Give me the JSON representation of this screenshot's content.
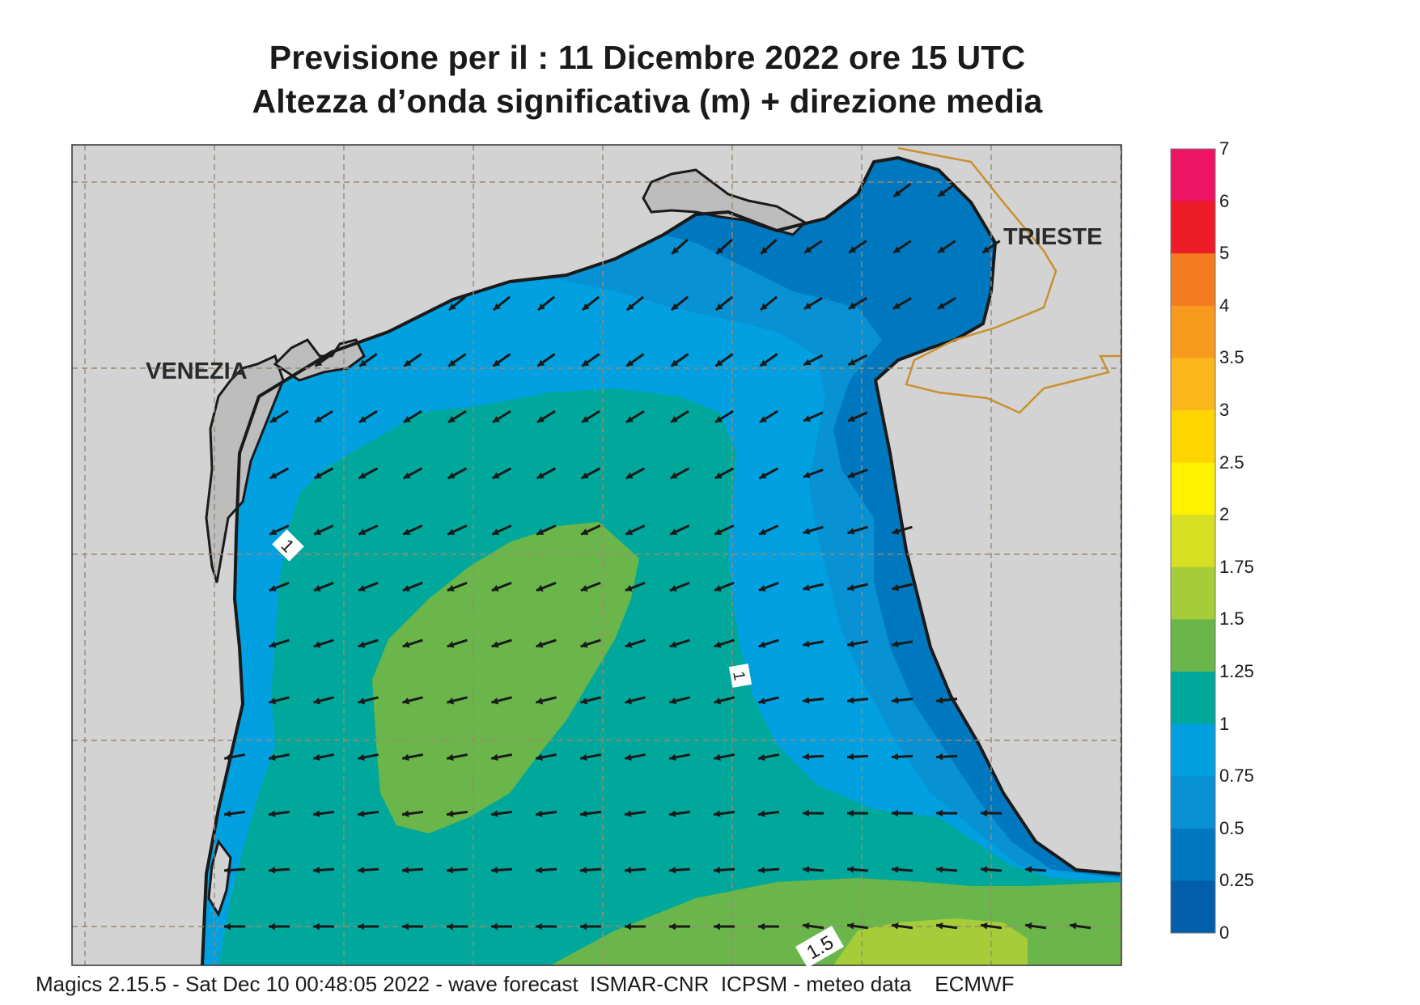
{
  "header": {
    "title_line1": "Previsione per il  :  11 Dicembre  2022   ore 15 UTC",
    "title_line2": "Altezza d’onda significativa (m) + direzione media"
  },
  "map": {
    "cities": [
      "VENEZIA",
      "TRIESTE"
    ],
    "contour_labels": [
      "1",
      "1",
      "1.5"
    ],
    "wave_direction": "from NE toward SW / W",
    "colors": {
      "land": "#d3d3d3",
      "coast": "#1a1a1a",
      "border": "#c9912e",
      "grid": "#9a8a70",
      "arrow": "#1a1a1a"
    }
  },
  "colorbar": {
    "labels": [
      "7",
      "6",
      "5",
      "4",
      "3.5",
      "3",
      "2.5",
      "2",
      "1.75",
      "1.5",
      "1.25",
      "1",
      "0.75",
      "0.5",
      "0.25",
      "0"
    ],
    "colors": [
      "#ec1463",
      "#ee1c27",
      "#f47b20",
      "#f79a1e",
      "#fbb81a",
      "#ffd500",
      "#fff200",
      "#d7df23",
      "#a6cd39",
      "#6ab64a",
      "#00a89c",
      "#00a0e1",
      "#0891d3",
      "#0078c0",
      "#005eaa"
    ]
  },
  "footer": {
    "text": "Magics 2.15.5 - Sat Dec 10 00:48:05 2022 - wave forecast  ISMAR-CNR  ICPSM - meteo data    ECMWF"
  }
}
